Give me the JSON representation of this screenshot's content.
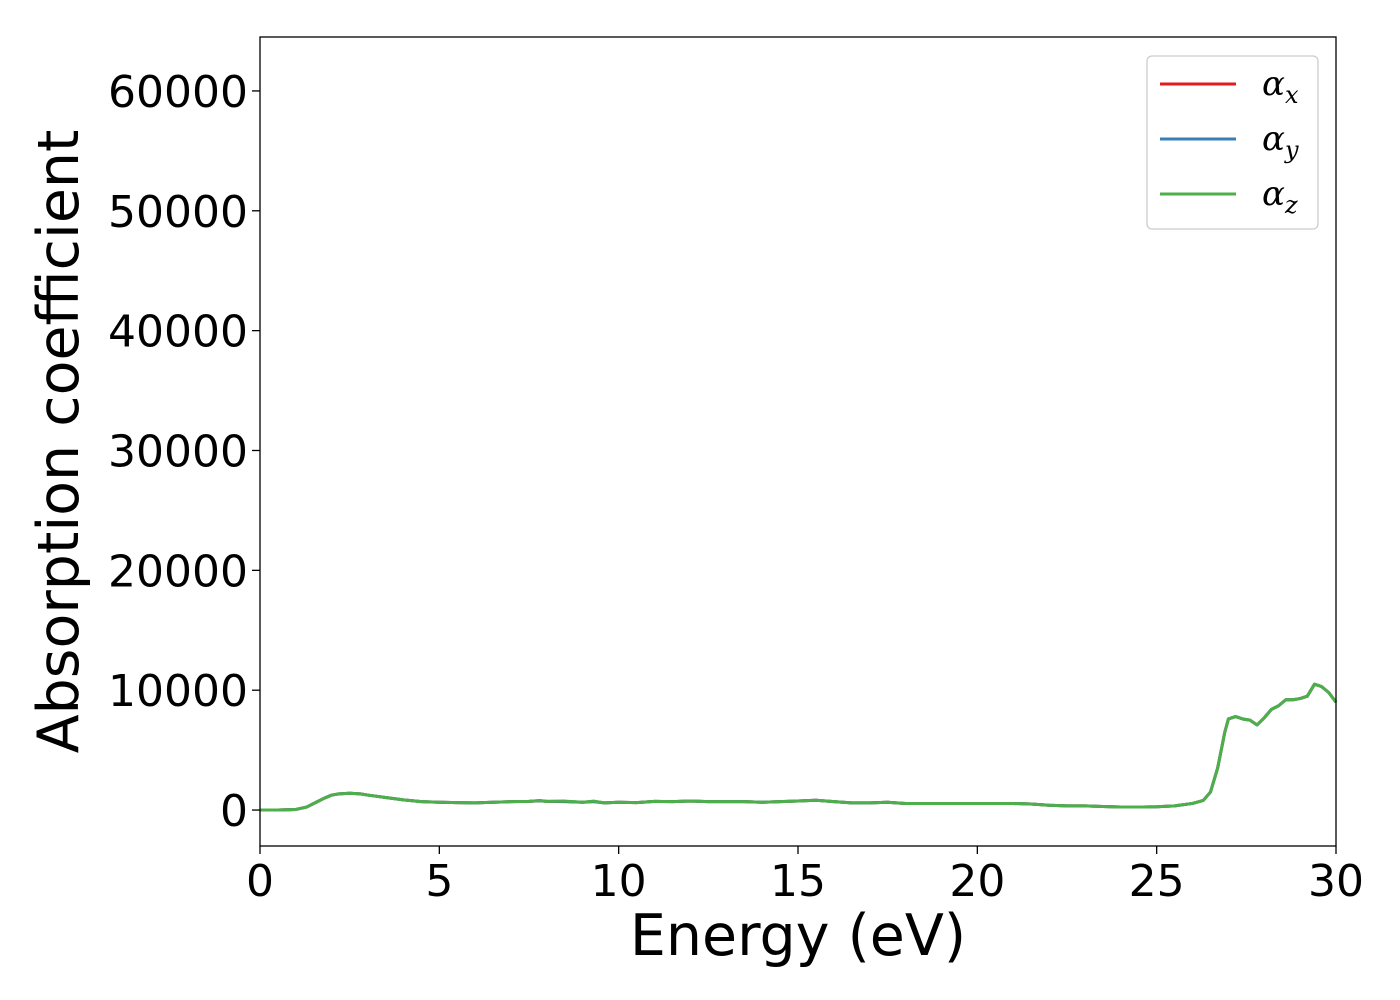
{
  "chart_data": {
    "type": "line",
    "title": "",
    "xlabel": "Energy (eV)",
    "ylabel": "Absorption coefficient",
    "xlim": [
      0,
      30
    ],
    "ylim": [
      -3000,
      64500
    ],
    "x_ticks": [
      0,
      5,
      10,
      15,
      20,
      25,
      30
    ],
    "x_tick_labels": [
      "0",
      "5",
      "10",
      "15",
      "20",
      "25",
      "30"
    ],
    "y_ticks": [
      0,
      10000,
      20000,
      30000,
      40000,
      50000,
      60000
    ],
    "y_tick_labels": [
      "0",
      "10000",
      "20000",
      "30000",
      "40000",
      "50000",
      "60000"
    ],
    "grid": false,
    "legend_position": "top-right",
    "series": [
      {
        "name": "α_x",
        "legend_symbol": "α",
        "legend_subscript": "x",
        "color": "#e41a1c",
        "x": [
          0,
          0.5,
          1.0,
          1.3,
          1.6,
          1.8,
          2.0,
          2.2,
          2.5,
          2.8,
          3.0,
          3.5,
          4.0,
          4.5,
          5.0,
          5.5,
          6.0,
          6.5,
          7.0,
          7.5,
          7.8,
          8.0,
          8.5,
          9.0,
          9.3,
          9.6,
          10.0,
          10.5,
          11.0,
          11.5,
          12.0,
          12.5,
          13.0,
          13.5,
          14.0,
          14.5,
          15.0,
          15.5,
          16.0,
          16.5,
          17.0,
          17.5,
          18.0,
          18.5,
          19.0,
          19.5,
          20.0,
          20.5,
          21.0,
          21.5,
          22.0,
          22.5,
          23.0,
          23.5,
          24.0,
          24.5,
          25.0,
          25.5,
          26.0,
          26.3,
          26.5,
          26.7,
          26.9,
          27.0,
          27.2,
          27.4,
          27.6,
          27.8,
          28.0,
          28.2,
          28.4,
          28.6,
          28.8,
          29.0,
          29.2,
          29.4,
          29.6,
          29.8,
          30.0
        ],
        "y": [
          0,
          0,
          50,
          250,
          700,
          1000,
          1250,
          1350,
          1400,
          1350,
          1250,
          1050,
          850,
          700,
          650,
          620,
          600,
          650,
          700,
          720,
          780,
          720,
          700,
          650,
          700,
          600,
          650,
          620,
          720,
          700,
          750,
          700,
          700,
          700,
          650,
          700,
          750,
          820,
          700,
          600,
          600,
          650,
          550,
          550,
          550,
          550,
          550,
          550,
          550,
          500,
          400,
          350,
          350,
          300,
          250,
          250,
          280,
          350,
          550,
          800,
          1500,
          3500,
          6500,
          7600,
          7800,
          7600,
          7500,
          7100,
          7700,
          8400,
          8700,
          9200,
          9200,
          9300,
          9500,
          10500,
          10300,
          9800,
          9000
        ]
      },
      {
        "name": "α_y",
        "legend_symbol": "α",
        "legend_subscript": "y",
        "color": "#377eb8",
        "x": [
          0,
          0.5,
          1.0,
          1.3,
          1.6,
          1.8,
          2.0,
          2.2,
          2.5,
          2.8,
          3.0,
          3.5,
          4.0,
          4.5,
          5.0,
          5.5,
          6.0,
          6.5,
          7.0,
          7.5,
          7.8,
          8.0,
          8.5,
          9.0,
          9.3,
          9.6,
          10.0,
          10.5,
          11.0,
          11.5,
          12.0,
          12.5,
          13.0,
          13.5,
          14.0,
          14.5,
          15.0,
          15.5,
          16.0,
          16.5,
          17.0,
          17.5,
          18.0,
          18.5,
          19.0,
          19.5,
          20.0,
          20.5,
          21.0,
          21.5,
          22.0,
          22.5,
          23.0,
          23.5,
          24.0,
          24.5,
          25.0,
          25.5,
          26.0,
          26.3,
          26.5,
          26.7,
          26.9,
          27.0,
          27.2,
          27.4,
          27.6,
          27.8,
          28.0,
          28.2,
          28.4,
          28.6,
          28.8,
          29.0,
          29.2,
          29.4,
          29.6,
          29.8,
          30.0
        ],
        "y": [
          0,
          0,
          50,
          250,
          700,
          1000,
          1250,
          1350,
          1400,
          1350,
          1250,
          1050,
          850,
          700,
          650,
          620,
          600,
          650,
          700,
          720,
          780,
          720,
          720,
          650,
          720,
          600,
          650,
          620,
          720,
          700,
          750,
          700,
          700,
          700,
          650,
          700,
          750,
          820,
          700,
          600,
          600,
          650,
          550,
          550,
          550,
          550,
          550,
          550,
          550,
          500,
          400,
          350,
          350,
          300,
          250,
          250,
          280,
          350,
          550,
          800,
          1500,
          3500,
          6500,
          7600,
          7800,
          7600,
          7500,
          7100,
          7700,
          8400,
          8700,
          9200,
          9200,
          9300,
          9500,
          10500,
          10300,
          9800,
          9000
        ]
      },
      {
        "name": "α_z",
        "legend_symbol": "α",
        "legend_subscript": "z",
        "color": "#4daf4a",
        "x": [
          0,
          0.5,
          1.0,
          1.3,
          1.6,
          1.8,
          2.0,
          2.2,
          2.5,
          2.8,
          3.0,
          3.5,
          4.0,
          4.5,
          5.0,
          5.5,
          6.0,
          6.5,
          7.0,
          7.5,
          7.8,
          8.0,
          8.5,
          9.0,
          9.3,
          9.6,
          10.0,
          10.5,
          11.0,
          11.5,
          12.0,
          12.5,
          13.0,
          13.5,
          14.0,
          14.5,
          15.0,
          15.5,
          16.0,
          16.5,
          17.0,
          17.5,
          18.0,
          18.5,
          19.0,
          19.5,
          20.0,
          20.5,
          21.0,
          21.5,
          22.0,
          22.5,
          23.0,
          23.5,
          24.0,
          24.5,
          25.0,
          25.5,
          26.0,
          26.3,
          26.5,
          26.7,
          26.9,
          27.0,
          27.2,
          27.4,
          27.6,
          27.8,
          28.0,
          28.2,
          28.4,
          28.6,
          28.8,
          29.0,
          29.2,
          29.4,
          29.6,
          29.8,
          30.0
        ],
        "y": [
          0,
          0,
          50,
          250,
          700,
          1000,
          1250,
          1350,
          1400,
          1350,
          1250,
          1050,
          850,
          700,
          650,
          620,
          600,
          650,
          700,
          720,
          800,
          720,
          750,
          650,
          750,
          600,
          650,
          620,
          720,
          700,
          750,
          700,
          700,
          700,
          650,
          700,
          750,
          820,
          700,
          600,
          600,
          650,
          550,
          550,
          550,
          550,
          550,
          550,
          550,
          500,
          400,
          350,
          350,
          300,
          250,
          250,
          280,
          350,
          550,
          800,
          1500,
          3500,
          6500,
          7600,
          7800,
          7600,
          7500,
          7100,
          7700,
          8400,
          8700,
          9200,
          9200,
          9300,
          9500,
          10500,
          10300,
          9800,
          9000
        ]
      }
    ]
  }
}
